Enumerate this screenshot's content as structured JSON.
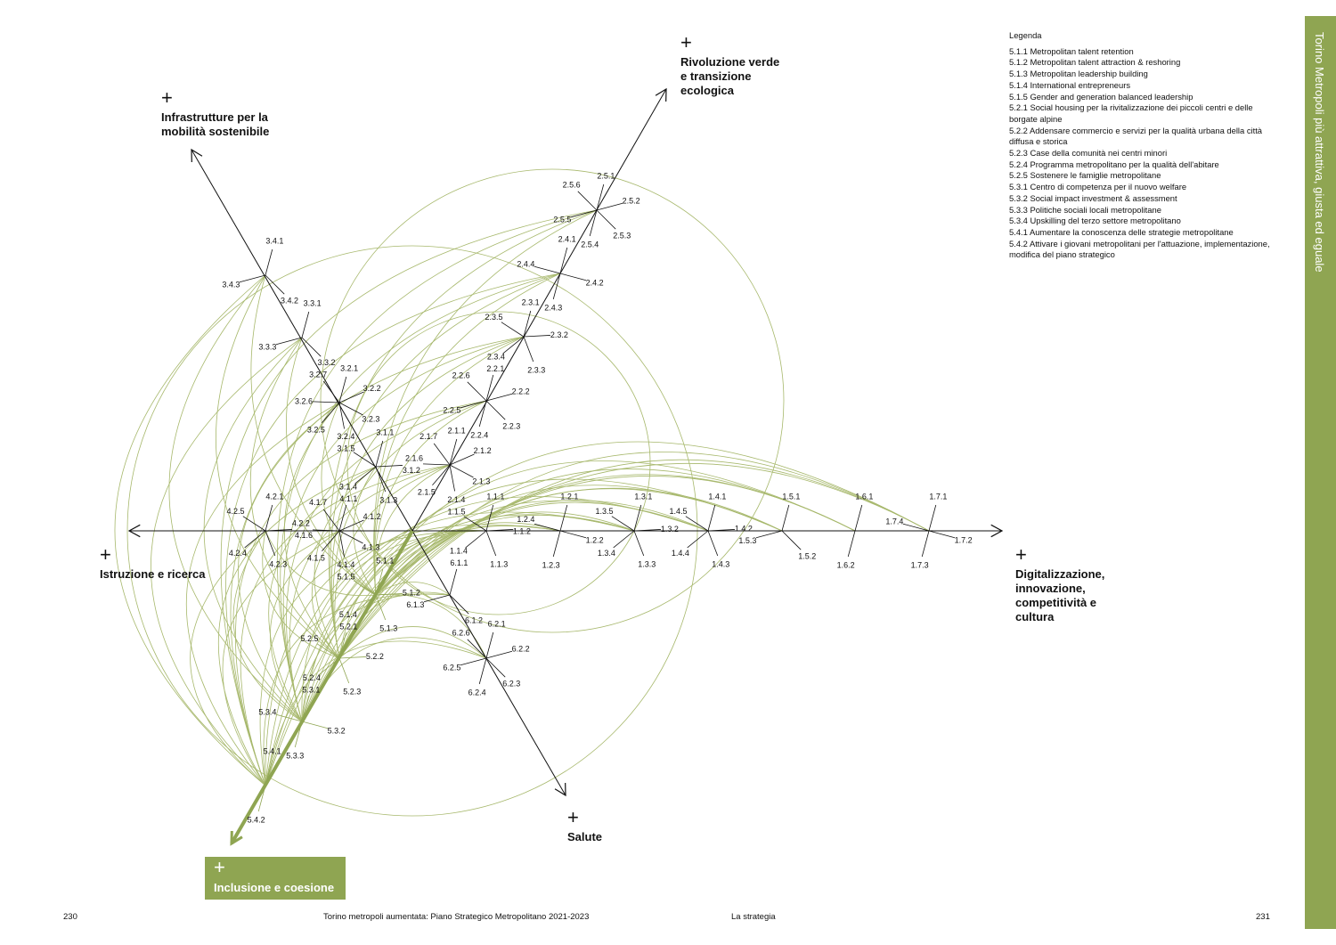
{
  "axes": {
    "rivoluzione": {
      "plus": "+",
      "label": "Rivoluzione verde\ne transizione\necologica"
    },
    "infrastrutture": {
      "plus": "+",
      "label": "Infrastrutture per la\nmobilità sostenibile"
    },
    "istruzione": {
      "plus": "+",
      "label": "Istruzione e ricerca"
    },
    "digitalizzazione": {
      "plus": "+",
      "label": "Digitalizzazione,\ninnovazione,\ncompetitività e\ncultura"
    },
    "salute": {
      "plus": "+",
      "label": "Salute"
    },
    "inclusione": {
      "plus": "+",
      "label": "Inclusione e coesione"
    }
  },
  "nodes": [
    {
      "id": "2.5",
      "labels": [
        "2.5.1",
        "2.5.2",
        "2.5.3",
        "2.5.4",
        "2.5.5",
        "2.5.6"
      ]
    },
    {
      "id": "2.4",
      "labels": [
        "2.4.1",
        "2.4.2",
        "2.4.3",
        "2.4.4"
      ]
    },
    {
      "id": "2.3",
      "labels": [
        "2.3.1",
        "2.3.2",
        "2.3.3",
        "2.3.4",
        "2.3.5"
      ]
    },
    {
      "id": "2.2",
      "labels": [
        "2.2.1",
        "2.2.2",
        "2.2.3",
        "2.2.4",
        "2.2.5",
        "2.2.6"
      ]
    },
    {
      "id": "2.1",
      "labels": [
        "2.1.1",
        "2.1.2",
        "2.1.3",
        "2.1.4",
        "2.1.5",
        "2.1.6",
        "2.1.7"
      ]
    },
    {
      "id": "3.4",
      "labels": [
        "3.4.1",
        "3.4.2",
        "3.4.3"
      ]
    },
    {
      "id": "3.3",
      "labels": [
        "3.3.1",
        "3.3.2",
        "3.3.3"
      ]
    },
    {
      "id": "3.2",
      "labels": [
        "3.2.1",
        "3.2.2",
        "3.2.3",
        "3.2.4",
        "3.2.5",
        "3.2.6",
        "3.2.7"
      ]
    },
    {
      "id": "3.1",
      "labels": [
        "3.1.1",
        "3.1.2",
        "3.1.3",
        "3.1.4",
        "3.1.5"
      ]
    },
    {
      "id": "4.2",
      "labels": [
        "4.2.1",
        "4.2.2",
        "4.2.3",
        "4.2.4",
        "4.2.5"
      ]
    },
    {
      "id": "4.1",
      "labels": [
        "4.1.1",
        "4.1.2",
        "4.1.3",
        "4.1.4",
        "4.1.5",
        "4.1.6",
        "4.1.7"
      ]
    },
    {
      "id": "1.1",
      "labels": [
        "1.1.1",
        "1.1.2",
        "1.1.3",
        "1.1.4",
        "1.1.5"
      ]
    },
    {
      "id": "1.2",
      "labels": [
        "1.2.1",
        "1.2.2",
        "1.2.3",
        "1.2.4"
      ]
    },
    {
      "id": "1.3",
      "labels": [
        "1.3.1",
        "1.3.2",
        "1.3.3",
        "1.3.4",
        "1.3.5"
      ]
    },
    {
      "id": "1.4",
      "labels": [
        "1.4.1",
        "1.4.2",
        "1.4.3",
        "1.4.4",
        "1.4.5"
      ]
    },
    {
      "id": "1.5",
      "labels": [
        "1.5.1",
        "1.5.2",
        "1.5.3"
      ]
    },
    {
      "id": "1.6",
      "labels": [
        "1.6.1",
        "1.6.2"
      ]
    },
    {
      "id": "1.7",
      "labels": [
        "1.7.1",
        "1.7.2",
        "1.7.3",
        "1.7.4"
      ]
    },
    {
      "id": "6.1",
      "labels": [
        "6.1.1",
        "6.1.2",
        "6.1.3"
      ]
    },
    {
      "id": "6.2",
      "labels": [
        "6.2.1",
        "6.2.2",
        "6.2.3",
        "6.2.4",
        "6.2.5",
        "6.2.6"
      ]
    },
    {
      "id": "5.1",
      "labels": [
        "5.1.1",
        "5.1.2",
        "5.1.3",
        "5.1.4",
        "5.1.5"
      ]
    },
    {
      "id": "5.2",
      "labels": [
        "5.2.1",
        "5.2.2",
        "5.2.3",
        "5.2.4",
        "5.2.5"
      ]
    },
    {
      "id": "5.3",
      "labels": [
        "5.3.1",
        "5.3.2",
        "5.3.3",
        "5.3.4"
      ]
    },
    {
      "id": "5.4",
      "labels": [
        "5.4.1",
        "5.4.2"
      ]
    }
  ],
  "legend": {
    "title": "Legenda",
    "items": [
      "5.1.1 Metropolitan talent retention",
      "5.1.2 Metropolitan talent attraction & reshoring",
      "5.1.3 Metropolitan leadership building",
      "5.1.4 International entrepreneurs",
      "5.1.5 Gender and generation balanced leadership",
      "5.2.1 Social housing per la rivitalizzazione dei piccoli centri e delle borgate alpine",
      "5.2.2 Addensare commercio e servizi per la qualità urbana della città diffusa e storica",
      "5.2.3 Case della comunità nei centri minori",
      "5.2.4 Programma metropolitano per la qualità dell'abitare",
      "5.2.5 Sostenere le famiglie metropolitane",
      "5.3.1 Centro di competenza per il nuovo welfare",
      "5.3.2 Social impact investment & assessment",
      "5.3.3 Politiche sociali locali metropolitane",
      "5.3.4 Upskilling del terzo settore metropolitano",
      "5.4.1 Aumentare la conoscenza delle strategie metropolitane",
      "5.4.2 Attivare i giovani metropolitani per l'attuazione, implementazione, modifica del piano strategico"
    ]
  },
  "sidebar": {
    "title": "Torino Metropoli più attrattiva, giusta ed eguale"
  },
  "footer": {
    "page_left": "230",
    "doc_title": "Torino metropoli aumentata: Piano Strategico Metropolitano 2021-2023",
    "section": "La strategia",
    "page_right": "231"
  },
  "colors": {
    "accent": "#8fa552",
    "arc": "#a7b86c",
    "ink": "#111111"
  }
}
